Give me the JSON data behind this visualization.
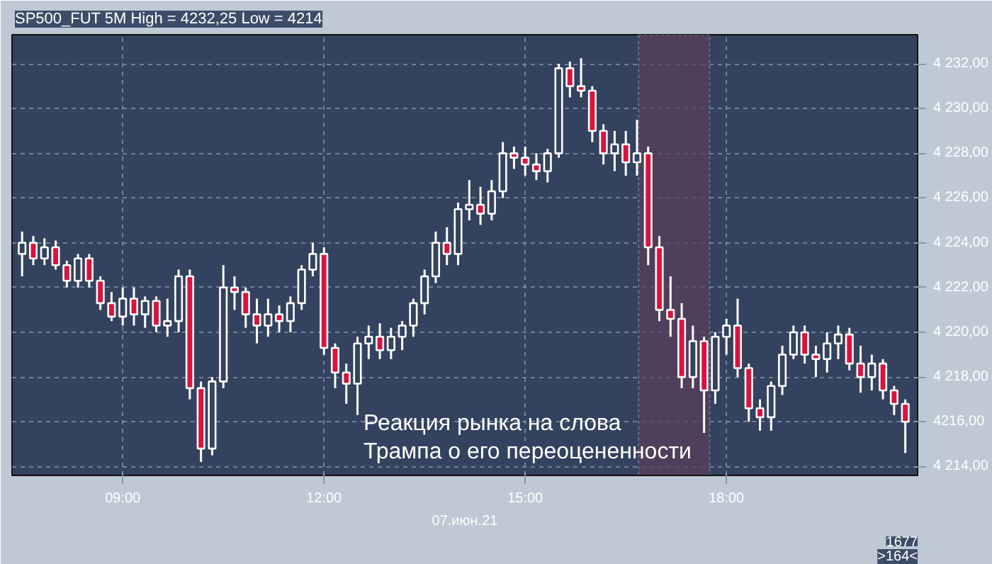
{
  "chart_data": {
    "type": "candlestick",
    "title": "SP500_FUT 5M High = 4232,25 Low = 4214",
    "xlabel": "07.июн.21",
    "annotations": [
      "Реакция рынка на слова\nТрампа о его переоцененности",
      "1677",
      ">164<"
    ],
    "x": [
      7.5,
      7.6667,
      7.8333,
      8,
      8.1667,
      8.3333,
      8.5,
      8.6667,
      8.8333,
      9,
      9.1667,
      9.3333,
      9.5,
      9.6667,
      9.8333,
      10,
      10.1667,
      10.3333,
      10.5,
      10.6667,
      10.8333,
      11,
      11.1667,
      11.3333,
      11.5,
      11.6667,
      11.8333,
      12,
      12.1667,
      12.3333,
      12.5,
      12.6667,
      12.8333,
      13,
      13.1667,
      13.3333,
      13.5,
      13.6667,
      13.8333,
      14,
      14.1667,
      14.3333,
      14.5,
      14.6667,
      14.8333,
      15,
      15.1667,
      15.3333,
      15.5,
      15.6667,
      15.8333,
      16,
      16.1667,
      16.3333,
      16.5,
      16.6667,
      16.8333,
      17,
      17.1667,
      17.3333,
      17.5,
      17.6667,
      17.8333,
      18,
      18.1667,
      18.3333,
      18.5,
      18.6667,
      18.8333,
      19,
      19.1667,
      19.3333,
      19.5,
      19.6667,
      19.8333,
      20,
      20.1667,
      20.3333,
      20.5,
      20.6667
    ],
    "ohlc": [
      [
        4223.5,
        4224.5,
        4222.5,
        4224
      ],
      [
        4224,
        4224.3,
        4223,
        4223.3
      ],
      [
        4223.3,
        4224.2,
        4223,
        4223.8
      ],
      [
        4223.8,
        4224.1,
        4222.8,
        4223
      ],
      [
        4223,
        4223.2,
        4222,
        4222.3
      ],
      [
        4222.3,
        4223.5,
        4222,
        4223.3
      ],
      [
        4223.3,
        4223.5,
        4222,
        4222.3
      ],
      [
        4222.3,
        4222.5,
        4221,
        4221.3
      ],
      [
        4221.3,
        4221.8,
        4220.5,
        4220.7
      ],
      [
        4220.7,
        4222,
        4220.3,
        4221.5
      ],
      [
        4221.5,
        4222,
        4220.3,
        4220.8
      ],
      [
        4220.8,
        4221.6,
        4220.2,
        4221.4
      ],
      [
        4221.4,
        4221.6,
        4220,
        4220.3
      ],
      [
        4220.3,
        4221.5,
        4219.8,
        4220.5
      ],
      [
        4220.5,
        4222.8,
        4220,
        4222.5
      ],
      [
        4222.5,
        4222.8,
        4217,
        4217.5
      ],
      [
        4217.5,
        4217.8,
        4214.2,
        4214.8
      ],
      [
        4214.8,
        4218,
        4214.5,
        4217.8
      ],
      [
        4217.8,
        4223,
        4217.5,
        4222
      ],
      [
        4222,
        4222.5,
        4221,
        4221.8
      ],
      [
        4221.8,
        4222,
        4220.2,
        4220.8
      ],
      [
        4220.8,
        4221.5,
        4219.5,
        4220.3
      ],
      [
        4220.3,
        4221.5,
        4219.8,
        4220.8
      ],
      [
        4220.8,
        4221.2,
        4220,
        4220.5
      ],
      [
        4220.5,
        4221.6,
        4220,
        4221.3
      ],
      [
        4221.3,
        4223,
        4221,
        4222.8
      ],
      [
        4222.8,
        4224,
        4222.5,
        4223.5
      ],
      [
        4223.5,
        4223.8,
        4219,
        4219.3
      ],
      [
        4219.3,
        4219.5,
        4217.5,
        4218.2
      ],
      [
        4218.2,
        4218.6,
        4216.8,
        4217.7
      ],
      [
        4217.7,
        4219.8,
        4216.3,
        4219.5
      ],
      [
        4219.5,
        4220.3,
        4218.8,
        4219.8
      ],
      [
        4219.8,
        4220.4,
        4218.8,
        4219.2
      ],
      [
        4219.2,
        4220.2,
        4218.8,
        4219.8
      ],
      [
        4219.8,
        4220.5,
        4219.2,
        4220.3
      ],
      [
        4220.3,
        4221.5,
        4219.8,
        4221.3
      ],
      [
        4221.3,
        4222.8,
        4220.8,
        4222.5
      ],
      [
        4222.5,
        4224.5,
        4222.2,
        4224
      ],
      [
        4224,
        4224.7,
        4223,
        4223.5
      ],
      [
        4223.5,
        4225.8,
        4223,
        4225.5
      ],
      [
        4225.5,
        4226.8,
        4225,
        4225.7
      ],
      [
        4225.7,
        4226.5,
        4224.8,
        4225.3
      ],
      [
        4225.3,
        4226.8,
        4225,
        4226.3
      ],
      [
        4226.3,
        4228.5,
        4226,
        4228
      ],
      [
        4228,
        4228.3,
        4227.3,
        4227.8
      ],
      [
        4227.8,
        4228.3,
        4227,
        4227.5
      ],
      [
        4227.5,
        4228,
        4226.8,
        4227.2
      ],
      [
        4227.2,
        4228.2,
        4226.7,
        4228
      ],
      [
        4228,
        4232,
        4227.8,
        4231.8
      ],
      [
        4231.8,
        4232.1,
        4230.5,
        4231
      ],
      [
        4231,
        4232.25,
        4230.5,
        4230.8
      ],
      [
        4230.8,
        4231,
        4228.5,
        4229
      ],
      [
        4229,
        4229.3,
        4227.5,
        4228
      ],
      [
        4228,
        4229,
        4227.2,
        4228.4
      ],
      [
        4228.4,
        4229,
        4227,
        4227.6
      ],
      [
        4227.6,
        4229.5,
        4227,
        4228
      ],
      [
        4228,
        4228.3,
        4223,
        4223.8
      ],
      [
        4223.8,
        4224.3,
        4220.5,
        4221
      ],
      [
        4221,
        4222.5,
        4219.8,
        4220.6
      ],
      [
        4220.6,
        4221.3,
        4217.5,
        4218
      ],
      [
        4218,
        4220.3,
        4217.5,
        4219.6
      ],
      [
        4219.6,
        4219.8,
        4215.5,
        4217.4
      ],
      [
        4217.4,
        4220,
        4216.8,
        4219.8
      ],
      [
        4219.8,
        4220.6,
        4219,
        4220.3
      ],
      [
        4220.3,
        4221.5,
        4218,
        4218.4
      ],
      [
        4218.4,
        4218.6,
        4216,
        4216.6
      ],
      [
        4216.6,
        4217,
        4215.6,
        4216.2
      ],
      [
        4216.2,
        4217.8,
        4215.6,
        4217.6
      ],
      [
        4217.6,
        4219.4,
        4217.2,
        4219
      ],
      [
        4219,
        4220.3,
        4218.8,
        4220
      ],
      [
        4220,
        4220.3,
        4218.6,
        4219
      ],
      [
        4219,
        4219.4,
        4218,
        4218.8
      ],
      [
        4218.8,
        4220,
        4218.2,
        4219.5
      ],
      [
        4219.5,
        4220.3,
        4218.8,
        4219.9
      ],
      [
        4219.9,
        4220.2,
        4218.3,
        4218.6
      ],
      [
        4218.6,
        4219.4,
        4217.3,
        4218
      ],
      [
        4218,
        4219,
        4217.4,
        4218.6
      ],
      [
        4218.6,
        4218.8,
        4217,
        4217.4
      ],
      [
        4217.4,
        4217.6,
        4216.3,
        4216.8
      ],
      [
        4216.8,
        4217,
        4214.6,
        4216
      ]
    ],
    "xlim": [
      7.35,
      20.85
    ],
    "ylim": [
      4213.6,
      4233.3
    ],
    "xticks": [
      {
        "value": 9,
        "label": "09:00"
      },
      {
        "value": 12,
        "label": "12:00"
      },
      {
        "value": 15,
        "label": "15:00"
      },
      {
        "value": 18,
        "label": "18:00"
      }
    ],
    "yticks": [
      {
        "value": 4214,
        "label": "4 214,00"
      },
      {
        "value": 4216,
        "label": "4216,00"
      },
      {
        "value": 4218,
        "label": "4 218,00"
      },
      {
        "value": 4220,
        "label": "4 220,00"
      },
      {
        "value": 4222,
        "label": "4 222,00"
      },
      {
        "value": 4224,
        "label": "4 224,00"
      },
      {
        "value": 4226,
        "label": "4 226,00"
      },
      {
        "value": 4228,
        "label": "4 228,00"
      },
      {
        "value": 4230,
        "label": "4 230,00"
      },
      {
        "value": 4232,
        "label": "4 232,00"
      }
    ],
    "bands": [
      {
        "axis": "x",
        "from": 16.69,
        "to": 17.75,
        "color": "#5a3f5a"
      }
    ],
    "grid": true
  }
}
